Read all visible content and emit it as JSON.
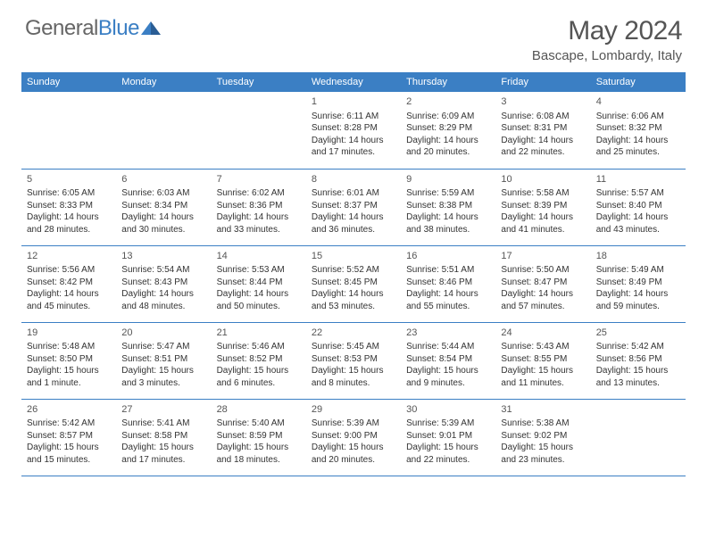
{
  "logo": {
    "part1": "General",
    "part2": "Blue"
  },
  "title": "May 2024",
  "location": "Bascape, Lombardy, Italy",
  "colors": {
    "header_bg": "#3b7fc4",
    "header_text": "#ffffff",
    "border": "#3b7fc4",
    "text": "#333333",
    "title_text": "#555555",
    "logo_gray": "#666666",
    "logo_blue": "#3b7fc4",
    "background": "#ffffff"
  },
  "typography": {
    "title_fontsize": 30,
    "location_fontsize": 15,
    "dayhead_fontsize": 11,
    "daynum_fontsize": 11,
    "body_fontsize": 10
  },
  "day_headers": [
    "Sunday",
    "Monday",
    "Tuesday",
    "Wednesday",
    "Thursday",
    "Friday",
    "Saturday"
  ],
  "weeks": [
    [
      null,
      null,
      null,
      {
        "n": "1",
        "sunrise": "6:11 AM",
        "sunset": "8:28 PM",
        "daylight": "14 hours and 17 minutes."
      },
      {
        "n": "2",
        "sunrise": "6:09 AM",
        "sunset": "8:29 PM",
        "daylight": "14 hours and 20 minutes."
      },
      {
        "n": "3",
        "sunrise": "6:08 AM",
        "sunset": "8:31 PM",
        "daylight": "14 hours and 22 minutes."
      },
      {
        "n": "4",
        "sunrise": "6:06 AM",
        "sunset": "8:32 PM",
        "daylight": "14 hours and 25 minutes."
      }
    ],
    [
      {
        "n": "5",
        "sunrise": "6:05 AM",
        "sunset": "8:33 PM",
        "daylight": "14 hours and 28 minutes."
      },
      {
        "n": "6",
        "sunrise": "6:03 AM",
        "sunset": "8:34 PM",
        "daylight": "14 hours and 30 minutes."
      },
      {
        "n": "7",
        "sunrise": "6:02 AM",
        "sunset": "8:36 PM",
        "daylight": "14 hours and 33 minutes."
      },
      {
        "n": "8",
        "sunrise": "6:01 AM",
        "sunset": "8:37 PM",
        "daylight": "14 hours and 36 minutes."
      },
      {
        "n": "9",
        "sunrise": "5:59 AM",
        "sunset": "8:38 PM",
        "daylight": "14 hours and 38 minutes."
      },
      {
        "n": "10",
        "sunrise": "5:58 AM",
        "sunset": "8:39 PM",
        "daylight": "14 hours and 41 minutes."
      },
      {
        "n": "11",
        "sunrise": "5:57 AM",
        "sunset": "8:40 PM",
        "daylight": "14 hours and 43 minutes."
      }
    ],
    [
      {
        "n": "12",
        "sunrise": "5:56 AM",
        "sunset": "8:42 PM",
        "daylight": "14 hours and 45 minutes."
      },
      {
        "n": "13",
        "sunrise": "5:54 AM",
        "sunset": "8:43 PM",
        "daylight": "14 hours and 48 minutes."
      },
      {
        "n": "14",
        "sunrise": "5:53 AM",
        "sunset": "8:44 PM",
        "daylight": "14 hours and 50 minutes."
      },
      {
        "n": "15",
        "sunrise": "5:52 AM",
        "sunset": "8:45 PM",
        "daylight": "14 hours and 53 minutes."
      },
      {
        "n": "16",
        "sunrise": "5:51 AM",
        "sunset": "8:46 PM",
        "daylight": "14 hours and 55 minutes."
      },
      {
        "n": "17",
        "sunrise": "5:50 AM",
        "sunset": "8:47 PM",
        "daylight": "14 hours and 57 minutes."
      },
      {
        "n": "18",
        "sunrise": "5:49 AM",
        "sunset": "8:49 PM",
        "daylight": "14 hours and 59 minutes."
      }
    ],
    [
      {
        "n": "19",
        "sunrise": "5:48 AM",
        "sunset": "8:50 PM",
        "daylight": "15 hours and 1 minute."
      },
      {
        "n": "20",
        "sunrise": "5:47 AM",
        "sunset": "8:51 PM",
        "daylight": "15 hours and 3 minutes."
      },
      {
        "n": "21",
        "sunrise": "5:46 AM",
        "sunset": "8:52 PM",
        "daylight": "15 hours and 6 minutes."
      },
      {
        "n": "22",
        "sunrise": "5:45 AM",
        "sunset": "8:53 PM",
        "daylight": "15 hours and 8 minutes."
      },
      {
        "n": "23",
        "sunrise": "5:44 AM",
        "sunset": "8:54 PM",
        "daylight": "15 hours and 9 minutes."
      },
      {
        "n": "24",
        "sunrise": "5:43 AM",
        "sunset": "8:55 PM",
        "daylight": "15 hours and 11 minutes."
      },
      {
        "n": "25",
        "sunrise": "5:42 AM",
        "sunset": "8:56 PM",
        "daylight": "15 hours and 13 minutes."
      }
    ],
    [
      {
        "n": "26",
        "sunrise": "5:42 AM",
        "sunset": "8:57 PM",
        "daylight": "15 hours and 15 minutes."
      },
      {
        "n": "27",
        "sunrise": "5:41 AM",
        "sunset": "8:58 PM",
        "daylight": "15 hours and 17 minutes."
      },
      {
        "n": "28",
        "sunrise": "5:40 AM",
        "sunset": "8:59 PM",
        "daylight": "15 hours and 18 minutes."
      },
      {
        "n": "29",
        "sunrise": "5:39 AM",
        "sunset": "9:00 PM",
        "daylight": "15 hours and 20 minutes."
      },
      {
        "n": "30",
        "sunrise": "5:39 AM",
        "sunset": "9:01 PM",
        "daylight": "15 hours and 22 minutes."
      },
      {
        "n": "31",
        "sunrise": "5:38 AM",
        "sunset": "9:02 PM",
        "daylight": "15 hours and 23 minutes."
      },
      null
    ]
  ],
  "labels": {
    "sunrise_prefix": "Sunrise: ",
    "sunset_prefix": "Sunset: ",
    "daylight_prefix": "Daylight: "
  }
}
